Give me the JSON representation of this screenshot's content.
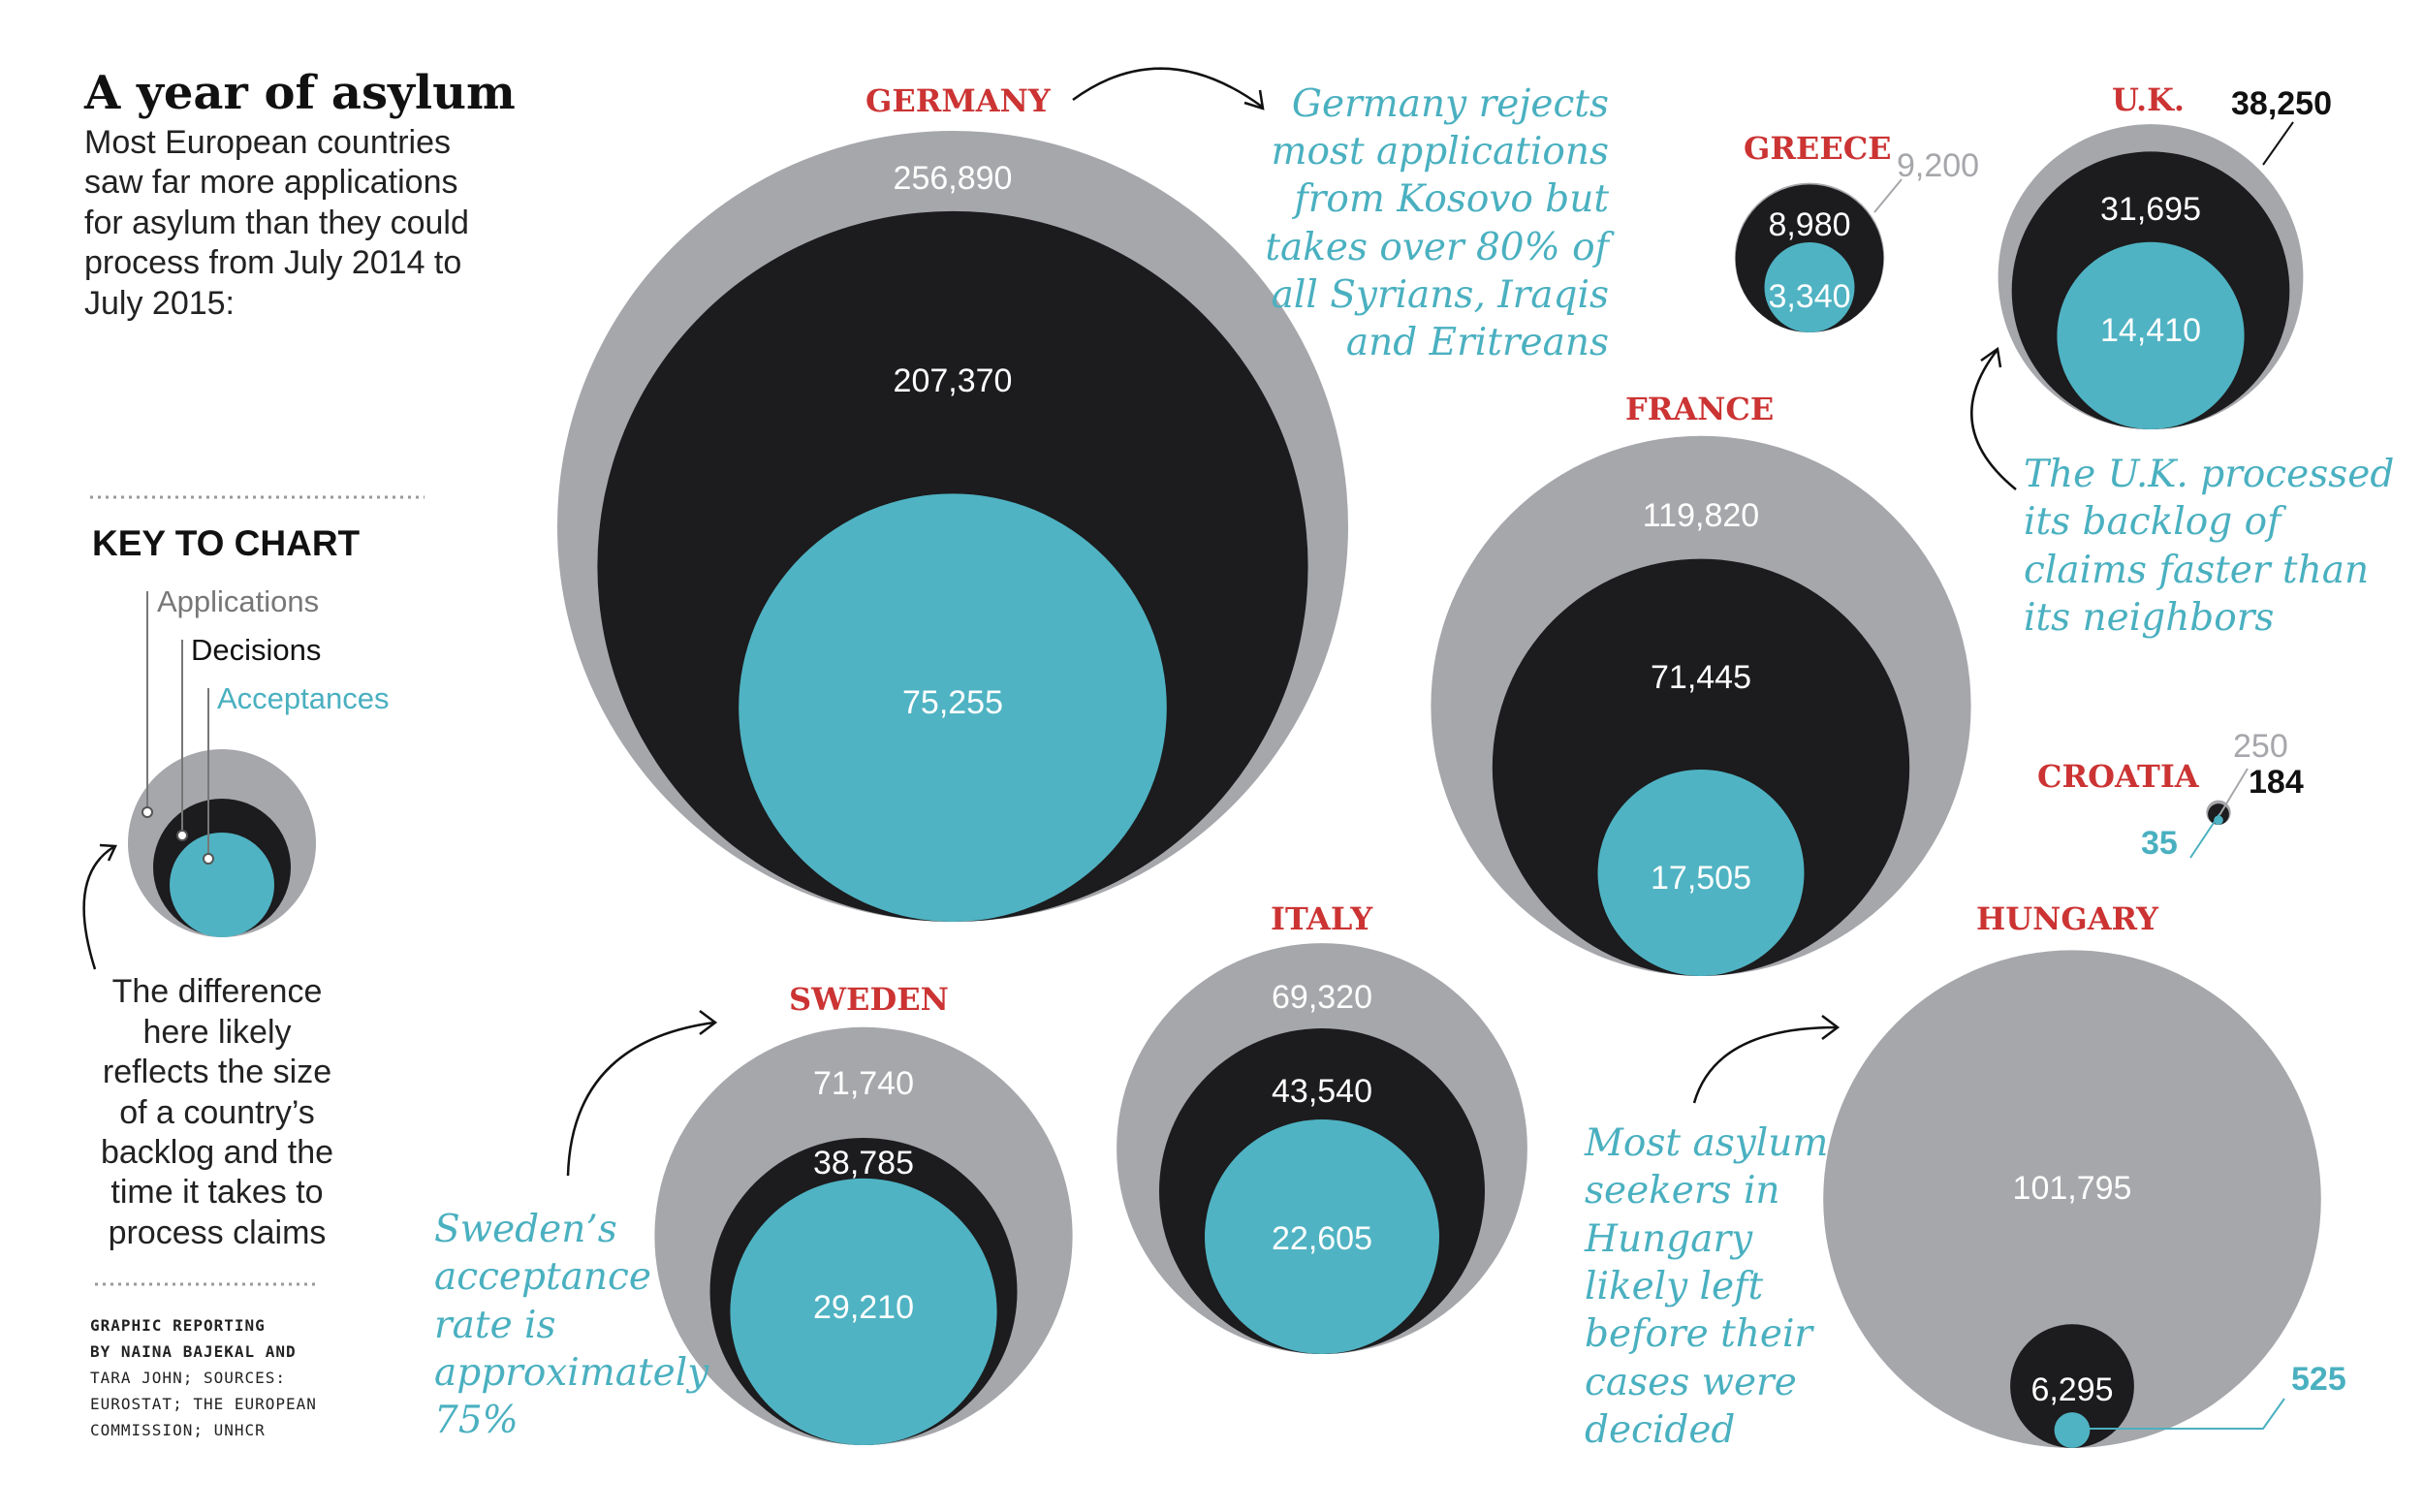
{
  "header": {
    "title": "A year of asylum",
    "subtitle_lines": [
      "Most European countries",
      "saw far more applications",
      "for asylum than they could",
      "process from July 2014 to",
      "July 2015:"
    ]
  },
  "key": {
    "heading": "KEY TO CHART",
    "applications": "Applications",
    "decisions": "Decisions",
    "acceptances": "Acceptances",
    "explanation_lines": [
      "The difference",
      "here likely",
      "reflects the size",
      "of a country’s",
      "backlog and the",
      "time it takes to",
      "process claims"
    ]
  },
  "credits": {
    "lines": [
      "GRAPHIC REPORTING",
      "BY NAINA BAJEKAL AND",
      "TARA JOHN; SOURCES:",
      "EUROSTAT; THE EUROPEAN",
      "COMMISSION; UNHCR"
    ]
  },
  "colors": {
    "applications": "#a6a7ab",
    "decisions": "#1c1b1d",
    "acceptances": "#4fb3c3",
    "country_label": "#cc3333",
    "annotation": "#4ab0c0"
  },
  "chart_data": {
    "type": "nested-circles",
    "title": "A year of asylum",
    "series": [
      "Applications",
      "Decisions",
      "Acceptances"
    ],
    "countries": [
      {
        "name": "GERMANY",
        "applications": 256890,
        "decisions": 207370,
        "acceptances": 75255,
        "labels": {
          "applications": "256,890",
          "decisions": "207,370",
          "acceptances": "75,255"
        }
      },
      {
        "name": "GREECE",
        "applications": 9200,
        "decisions": 8980,
        "acceptances": 3340,
        "labels": {
          "applications": "9,200",
          "decisions": "8,980",
          "acceptances": "3,340"
        }
      },
      {
        "name": "U.K.",
        "applications": 38250,
        "decisions": 31695,
        "acceptances": 14410,
        "labels": {
          "applications": "38,250",
          "decisions": "31,695",
          "acceptances": "14,410"
        }
      },
      {
        "name": "FRANCE",
        "applications": 119820,
        "decisions": 71445,
        "acceptances": 17505,
        "labels": {
          "applications": "119,820",
          "decisions": "71,445",
          "acceptances": "17,505"
        }
      },
      {
        "name": "CROATIA",
        "applications": 250,
        "decisions": 184,
        "acceptances": 35,
        "labels": {
          "applications": "250",
          "decisions": "184",
          "acceptances": "35"
        }
      },
      {
        "name": "SWEDEN",
        "applications": 71740,
        "decisions": 38785,
        "acceptances": 29210,
        "labels": {
          "applications": "71,740",
          "decisions": "38,785",
          "acceptances": "29,210"
        }
      },
      {
        "name": "ITALY",
        "applications": 69320,
        "decisions": 43540,
        "acceptances": 22605,
        "labels": {
          "applications": "69,320",
          "decisions": "43,540",
          "acceptances": "22,605"
        }
      },
      {
        "name": "HUNGARY",
        "applications": 101795,
        "decisions": 6295,
        "acceptances": 525,
        "labels": {
          "applications": "101,795",
          "decisions": "6,295",
          "acceptances": "525"
        }
      }
    ],
    "annotations": {
      "germany": [
        "Germany rejects",
        "most applications",
        "from Kosovo but",
        "takes over 80% of",
        "all Syrians, Iraqis",
        "and Eritreans"
      ],
      "uk": [
        "The U.K. processed",
        "its backlog of",
        "claims faster than",
        "its neighbors"
      ],
      "sweden": [
        "Sweden’s",
        "acceptance",
        "rate is",
        "approximately",
        "75%"
      ],
      "hungary": [
        "Most asylum",
        "seekers in",
        "Hungary",
        "likely left",
        "before their",
        "cases were",
        "decided"
      ]
    }
  }
}
